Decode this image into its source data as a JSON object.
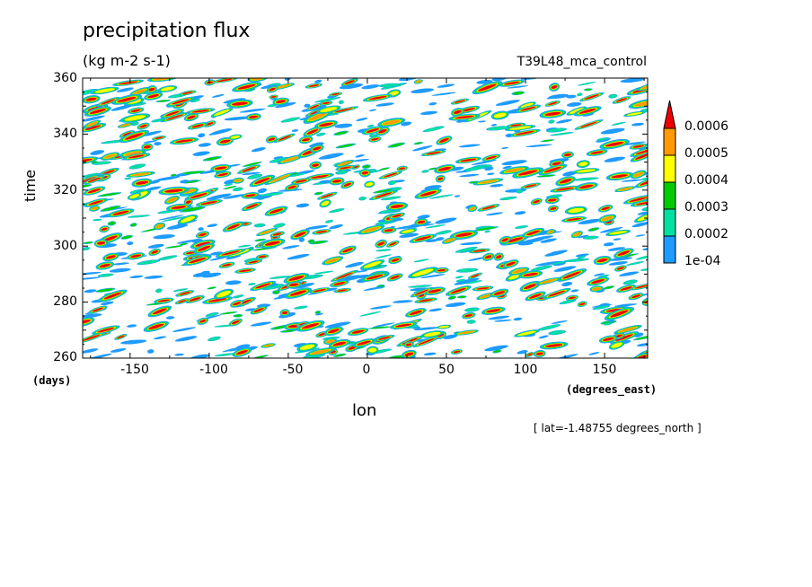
{
  "chart_data": {
    "type": "heatmap",
    "title": "precipitation flux",
    "units": "(kg m-2 s-1)",
    "experiment": "T39L48_mca_control",
    "xlabel": "lon",
    "ylabel": "time",
    "x_units": "(degrees_east)",
    "y_units": "(days)",
    "xlim": [
      -180,
      177.2
    ],
    "ylim": [
      260,
      360
    ],
    "x_ticks": [
      -150,
      -100,
      -50,
      0,
      50,
      100,
      150
    ],
    "y_ticks": [
      260,
      280,
      300,
      320,
      340,
      360
    ],
    "x_tick_labels": [
      "-150",
      "-100",
      "-50",
      "0",
      "50",
      "100",
      "150"
    ],
    "y_tick_labels": [
      "260",
      "280",
      "300",
      "320",
      "340",
      "360"
    ],
    "annotation": "[ lat=-1.48755 degrees_north ]",
    "levels": [
      0.0001,
      0.0002,
      0.0003,
      0.0004,
      0.0005,
      0.0006
    ],
    "colorbar_labels": [
      "0.0006",
      "0.0005",
      "0.0004",
      "0.0003",
      "0.0002",
      "1e-04"
    ],
    "colors": [
      "#ffffff",
      "#1e9bff",
      "#00e0a0",
      "#00cc00",
      "#ffff00",
      "#ff9900",
      "#ee0000"
    ],
    "pattern": "eastward-propagating streaks of heavy precipitation (slanted bands)"
  }
}
